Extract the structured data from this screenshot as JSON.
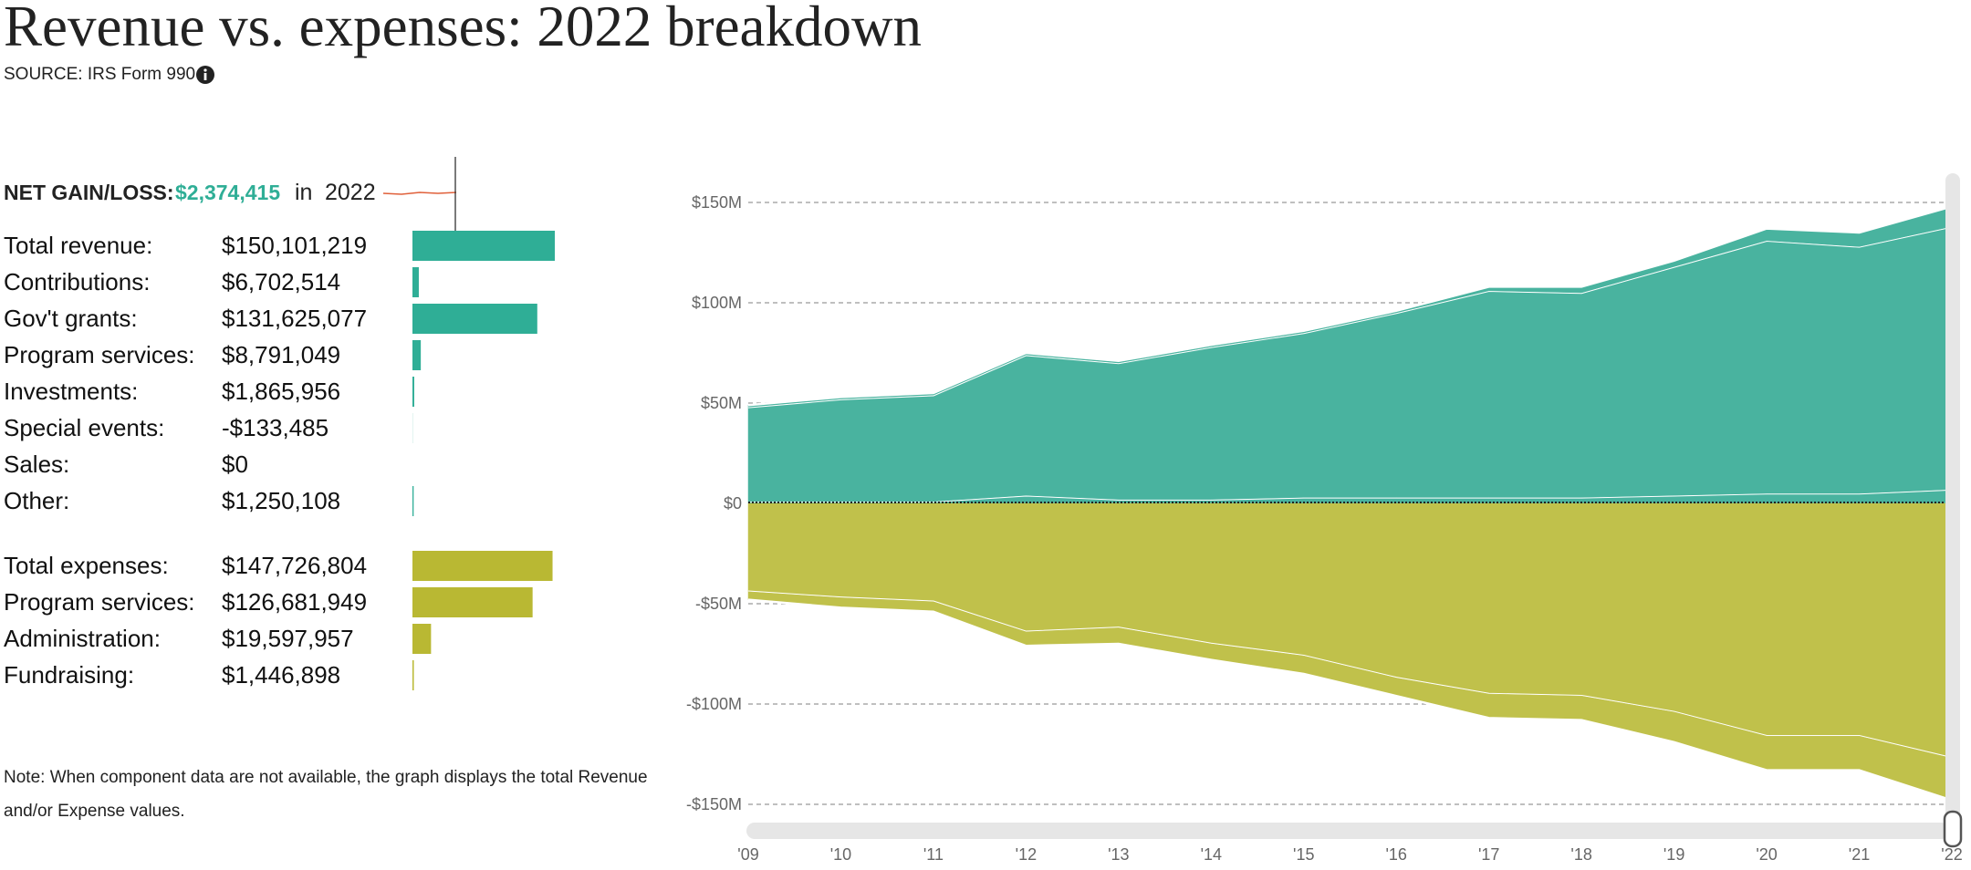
{
  "header": {
    "title": "Revenue vs. expenses: 2022 breakdown",
    "source": "SOURCE: IRS Form 990"
  },
  "summary": {
    "label": "NET GAIN/LOSS:",
    "value": 2374415,
    "value_label": "$2,374,415",
    "in": "in",
    "year": "2022"
  },
  "revenue": {
    "color": "#2fae96",
    "rows": [
      {
        "label": "Total revenue:",
        "value": 150101219,
        "value_label": "$150,101,219"
      },
      {
        "label": "Contributions:",
        "value": 6702514,
        "value_label": "$6,702,514"
      },
      {
        "label": "Gov't grants:",
        "value": 131625077,
        "value_label": "$131,625,077"
      },
      {
        "label": "Program services:",
        "value": 8791049,
        "value_label": "$8,791,049"
      },
      {
        "label": "Investments:",
        "value": 1865956,
        "value_label": "$1,865,956"
      },
      {
        "label": "Special events:",
        "value": -133485,
        "value_label": "-$133,485"
      },
      {
        "label": "Sales:",
        "value": 0,
        "value_label": "$0"
      },
      {
        "label": "Other:",
        "value": 1250108,
        "value_label": "$1,250,108"
      }
    ]
  },
  "expenses": {
    "color": "#b9b833",
    "rows": [
      {
        "label": "Total expenses:",
        "value": 147726804,
        "value_label": "$147,726,804"
      },
      {
        "label": "Program services:",
        "value": 126681949,
        "value_label": "$126,681,949"
      },
      {
        "label": "Administration:",
        "value": 19597957,
        "value_label": "$19,597,957"
      },
      {
        "label": "Fundraising:",
        "value": 1446898,
        "value_label": "$1,446,898"
      }
    ]
  },
  "note": "Note: When component data are not available, the graph displays the total Revenue and/or Expense values.",
  "chart_data": {
    "type": "stacked_area",
    "categories": [
      "'09",
      "'10",
      "'11",
      "'12",
      "'13",
      "'14",
      "'15",
      "'16",
      "'17",
      "'18",
      "'19",
      "'20",
      "'21",
      "'22"
    ],
    "series": [
      {
        "color": "#49b39f",
        "values": [
          1,
          1,
          1,
          4,
          2,
          2,
          3,
          3,
          3,
          3,
          4,
          5,
          5,
          7
        ]
      },
      {
        "color": "#49b39f",
        "values": [
          47,
          51,
          53,
          70,
          68,
          76,
          82,
          92,
          103,
          102,
          114,
          126,
          123,
          131
        ]
      },
      {
        "color": "#49b39f",
        "values": [
          1,
          1,
          1,
          1,
          1,
          1,
          1,
          1,
          2,
          3,
          3,
          6,
          7,
          10
        ]
      },
      {
        "color": "#c0c14b",
        "values": [
          -44,
          -47,
          -49,
          -64,
          -62,
          -70,
          -76,
          -87,
          -95,
          -96,
          -104,
          -116,
          -116,
          -127
        ]
      },
      {
        "color": "#c0c14b",
        "values": [
          -4,
          -5,
          -5,
          -7,
          -8,
          -8,
          -9,
          -9,
          -12,
          -12,
          -15,
          -17,
          -17,
          -21
        ]
      }
    ],
    "ylim": [
      -150,
      150
    ],
    "yticks": [
      {
        "value": -150,
        "label": "-$150M"
      },
      {
        "value": -100,
        "label": "-$100M"
      },
      {
        "value": -50,
        "label": "-$50M"
      },
      {
        "value": 0,
        "label": "$0"
      },
      {
        "value": 50,
        "label": "$50M"
      },
      {
        "value": 100,
        "label": "$100M"
      },
      {
        "value": 150,
        "label": "$150M"
      }
    ],
    "grid": true
  }
}
